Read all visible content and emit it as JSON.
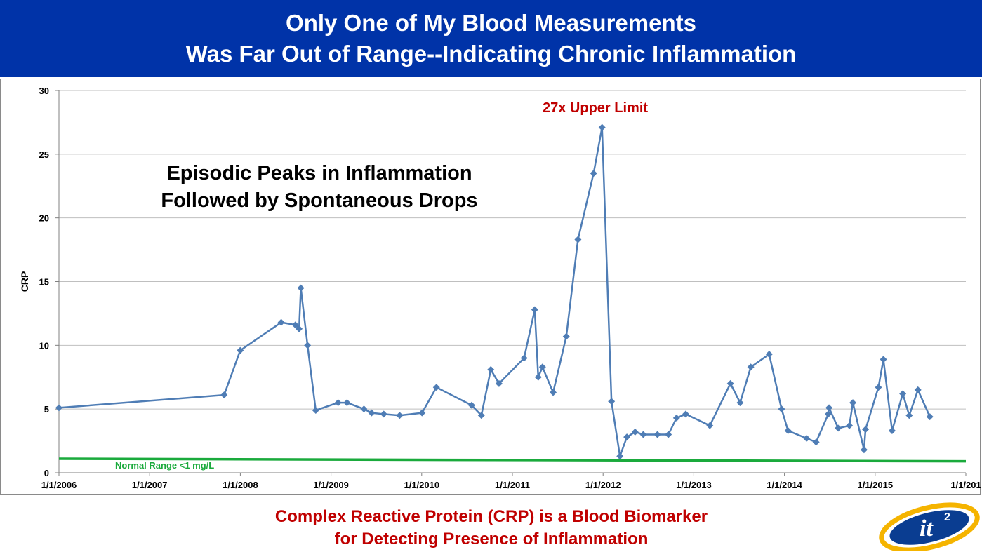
{
  "header": {
    "title_line1": "Only One of My Blood Measurements",
    "title_line2": "Was Far Out of Range--Indicating Chronic Inflammation"
  },
  "annotations": {
    "peak": "27x Upper Limit",
    "episodic_line1": "Episodic Peaks in Inflammation",
    "episodic_line2": "Followed by Spontaneous Drops",
    "normal_range": "Normal Range <1 mg/L"
  },
  "caption": {
    "line1": "Complex Reactive Protein (CRP) is a Blood Biomarker",
    "line2": "for Detecting Presence of Inflammation"
  },
  "logo": {
    "text": "it",
    "superscript": "2"
  },
  "colors": {
    "title_bg": "#0033A8",
    "series": "#4F7DB5",
    "normal": "#1AAA3C",
    "accent_red": "#C00000",
    "grid": "#BFBFBF",
    "logo_gold": "#F5B400",
    "logo_blue": "#0A3D91"
  },
  "chart_data": {
    "type": "line",
    "title": "",
    "xlabel": "",
    "ylabel": "CRP",
    "ylim": [
      0,
      30
    ],
    "yticks": [
      "0",
      "5",
      "10",
      "15",
      "20",
      "25",
      "30"
    ],
    "xlim": [
      "2006-01-01",
      "2016-01-01"
    ],
    "xticks": [
      "1/1/2006",
      "1/1/2007",
      "1/1/2008",
      "1/1/2009",
      "1/1/2010",
      "1/1/2011",
      "1/1/2012",
      "1/1/2013",
      "1/1/2014",
      "1/1/2015",
      "1/1/201"
    ],
    "grid": "horizontal",
    "series": [
      {
        "values": [
          [
            "2006-01-01",
            5.1
          ],
          [
            "2007-10-28",
            6.1
          ],
          [
            "2008-01-01",
            9.6
          ],
          [
            "2008-06-14",
            11.8
          ],
          [
            "2008-08-10",
            11.6
          ],
          [
            "2008-08-25",
            11.3
          ],
          [
            "2008-09-01",
            14.5
          ],
          [
            "2008-09-28",
            10.0
          ],
          [
            "2008-10-31",
            4.9
          ],
          [
            "2009-01-29",
            5.5
          ],
          [
            "2009-03-06",
            5.5
          ],
          [
            "2009-05-13",
            5.0
          ],
          [
            "2009-06-13",
            4.7
          ],
          [
            "2009-08-01",
            4.6
          ],
          [
            "2009-10-04",
            4.5
          ],
          [
            "2010-01-02",
            4.7
          ],
          [
            "2010-03-01",
            6.7
          ],
          [
            "2010-07-21",
            5.3
          ],
          [
            "2010-08-29",
            4.5
          ],
          [
            "2010-10-06",
            8.1
          ],
          [
            "2010-11-08",
            7.0
          ],
          [
            "2011-02-17",
            9.0
          ],
          [
            "2011-04-01",
            12.8
          ],
          [
            "2011-04-15",
            7.5
          ],
          [
            "2011-05-02",
            8.3
          ],
          [
            "2011-06-14",
            6.3
          ],
          [
            "2011-08-06",
            10.7
          ],
          [
            "2011-09-22",
            18.3
          ],
          [
            "2011-11-24",
            23.5
          ],
          [
            "2011-12-28",
            27.1
          ],
          [
            "2012-02-04",
            5.6
          ],
          [
            "2012-03-09",
            1.3
          ],
          [
            "2012-04-06",
            2.8
          ],
          [
            "2012-05-09",
            3.2
          ],
          [
            "2012-06-11",
            3.0
          ],
          [
            "2012-08-07",
            3.0
          ],
          [
            "2012-09-20",
            3.0
          ],
          [
            "2012-10-23",
            4.3
          ],
          [
            "2012-11-29",
            4.6
          ],
          [
            "2013-03-06",
            3.7
          ],
          [
            "2013-05-28",
            7.0
          ],
          [
            "2013-07-06",
            5.5
          ],
          [
            "2013-08-18",
            8.3
          ],
          [
            "2013-10-31",
            9.3
          ],
          [
            "2013-12-20",
            5.0
          ],
          [
            "2014-01-15",
            3.3
          ],
          [
            "2014-03-31",
            2.7
          ],
          [
            "2014-05-08",
            2.4
          ],
          [
            "2014-06-26",
            4.6
          ],
          [
            "2014-06-29",
            5.1
          ],
          [
            "2014-08-05",
            3.5
          ],
          [
            "2014-09-19",
            3.7
          ],
          [
            "2014-10-03",
            5.5
          ],
          [
            "2014-11-17",
            1.8
          ],
          [
            "2014-11-23",
            3.4
          ],
          [
            "2015-01-14",
            6.7
          ],
          [
            "2015-02-03",
            8.9
          ],
          [
            "2015-03-10",
            3.3
          ],
          [
            "2015-04-22",
            6.2
          ],
          [
            "2015-05-18",
            4.5
          ],
          [
            "2015-06-22",
            6.5
          ],
          [
            "2015-08-09",
            4.4
          ]
        ]
      },
      {
        "values": [
          [
            "2006-01-01",
            1.1
          ],
          [
            "2016-01-01",
            0.9
          ]
        ]
      }
    ]
  }
}
